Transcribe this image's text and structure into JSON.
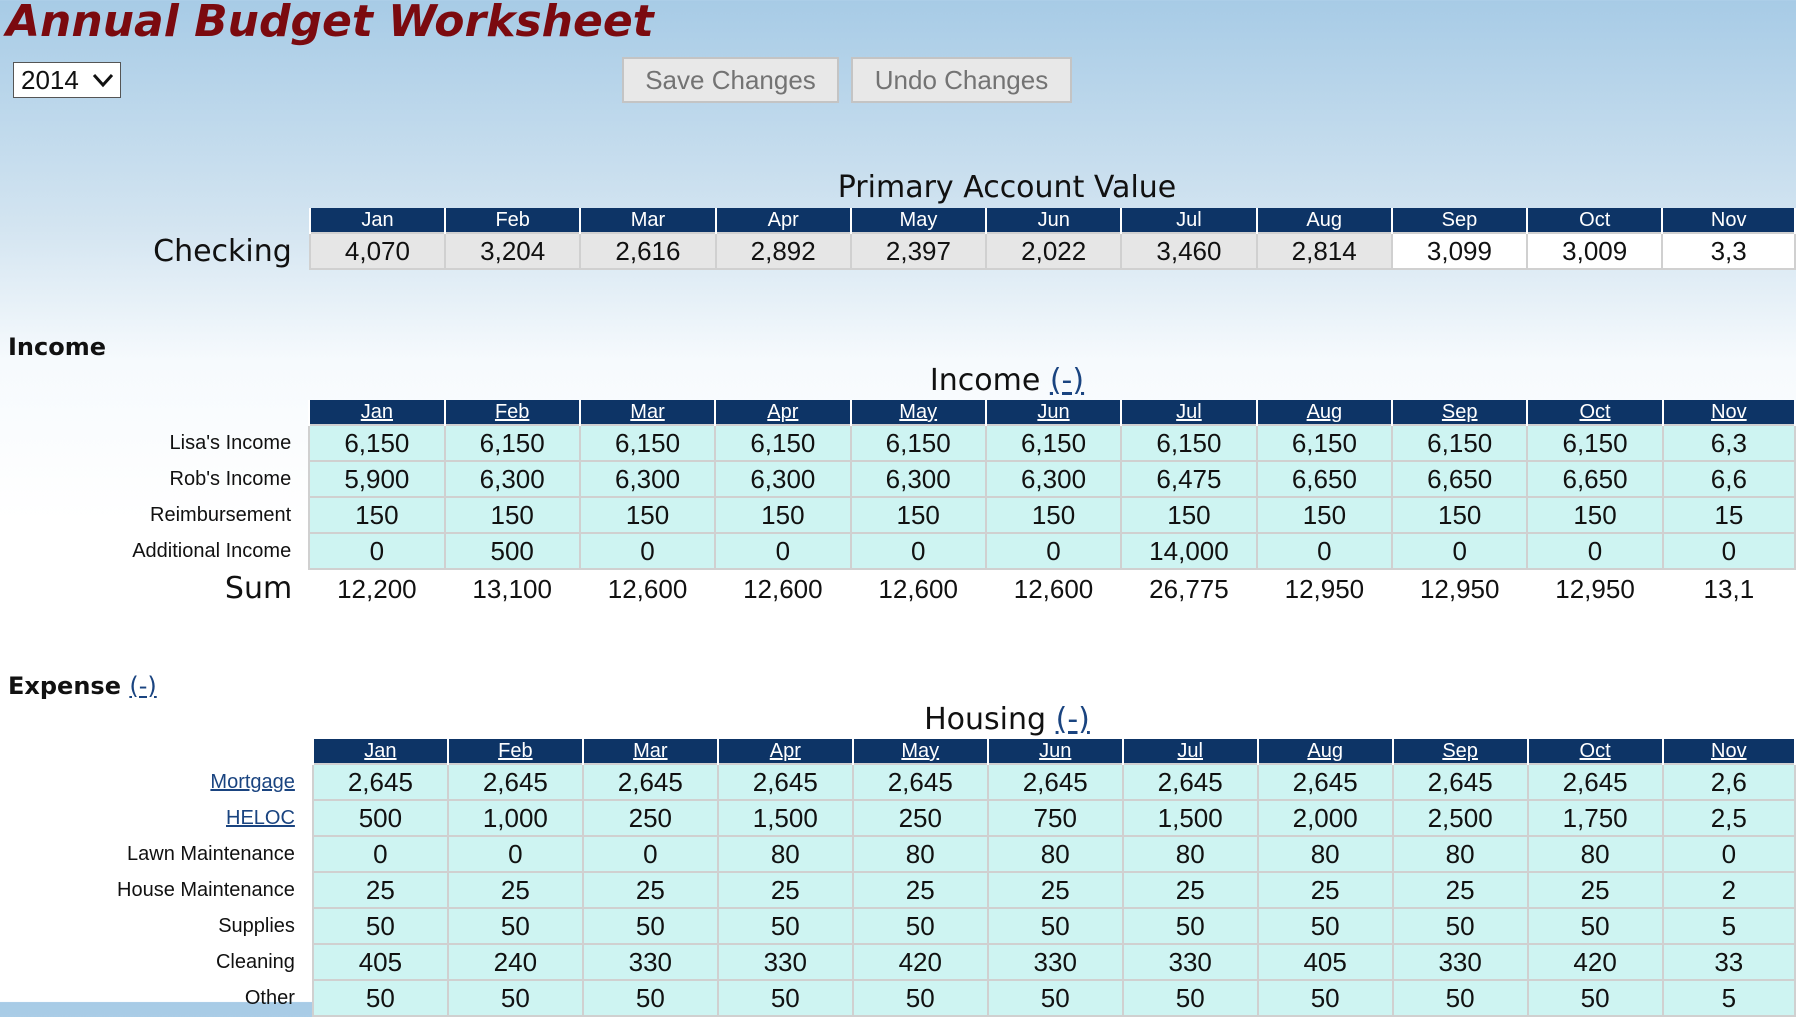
{
  "header": {
    "title": "Annual Budget Worksheet",
    "year": "2014",
    "save_label": "Save Changes",
    "undo_label": "Undo Changes"
  },
  "months": [
    "Jan",
    "Feb",
    "Mar",
    "Apr",
    "May",
    "Jun",
    "Jul",
    "Aug",
    "Sep",
    "Oct",
    "Nov"
  ],
  "primary": {
    "title": "Primary Account Value",
    "row_label": "Checking",
    "values": [
      "4,070",
      "3,204",
      "2,616",
      "2,892",
      "2,397",
      "2,022",
      "3,460",
      "2,814",
      "3,099",
      "3,009",
      "3,3"
    ]
  },
  "income_section": {
    "label": "Income",
    "title": "Income",
    "toggle": "(-)",
    "rows": [
      {
        "label": "Lisa's Income",
        "values": [
          "6,150",
          "6,150",
          "6,150",
          "6,150",
          "6,150",
          "6,150",
          "6,150",
          "6,150",
          "6,150",
          "6,150",
          "6,3"
        ]
      },
      {
        "label": "Rob's Income",
        "values": [
          "5,900",
          "6,300",
          "6,300",
          "6,300",
          "6,300",
          "6,300",
          "6,475",
          "6,650",
          "6,650",
          "6,650",
          "6,6"
        ]
      },
      {
        "label": "Reimbursement",
        "values": [
          "150",
          "150",
          "150",
          "150",
          "150",
          "150",
          "150",
          "150",
          "150",
          "150",
          "15"
        ]
      },
      {
        "label": "Additional Income",
        "values": [
          "0",
          "500",
          "0",
          "0",
          "0",
          "0",
          "14,000",
          "0",
          "0",
          "0",
          "0"
        ]
      }
    ],
    "sum_label": "Sum",
    "sums": [
      "12,200",
      "13,100",
      "12,600",
      "12,600",
      "12,600",
      "12,600",
      "26,775",
      "12,950",
      "12,950",
      "12,950",
      "13,1"
    ]
  },
  "expense_section": {
    "label": "Expense",
    "toggle": "(-)",
    "housing": {
      "title": "Housing",
      "toggle": "(-)",
      "rows": [
        {
          "label": "Mortgage",
          "link": true,
          "values": [
            "2,645",
            "2,645",
            "2,645",
            "2,645",
            "2,645",
            "2,645",
            "2,645",
            "2,645",
            "2,645",
            "2,645",
            "2,6"
          ]
        },
        {
          "label": "HELOC",
          "link": true,
          "values": [
            "500",
            "1,000",
            "250",
            "1,500",
            "250",
            "750",
            "1,500",
            "2,000",
            "2,500",
            "1,750",
            "2,5"
          ]
        },
        {
          "label": "Lawn Maintenance",
          "values": [
            "0",
            "0",
            "0",
            "80",
            "80",
            "80",
            "80",
            "80",
            "80",
            "80",
            "0"
          ]
        },
        {
          "label": "House Maintenance",
          "values": [
            "25",
            "25",
            "25",
            "25",
            "25",
            "25",
            "25",
            "25",
            "25",
            "25",
            "2"
          ]
        },
        {
          "label": "Supplies",
          "values": [
            "50",
            "50",
            "50",
            "50",
            "50",
            "50",
            "50",
            "50",
            "50",
            "50",
            "5"
          ]
        },
        {
          "label": "Cleaning",
          "values": [
            "405",
            "240",
            "330",
            "330",
            "420",
            "330",
            "330",
            "405",
            "330",
            "420",
            "33"
          ]
        },
        {
          "label": "Other",
          "values": [
            "50",
            "50",
            "50",
            "50",
            "50",
            "50",
            "50",
            "50",
            "50",
            "50",
            "5"
          ]
        }
      ]
    }
  },
  "colors": {
    "title": "#7b0a0f",
    "header_bg": "#0d3466",
    "cell_bg": "#cef4f2",
    "link": "#1a4480"
  }
}
